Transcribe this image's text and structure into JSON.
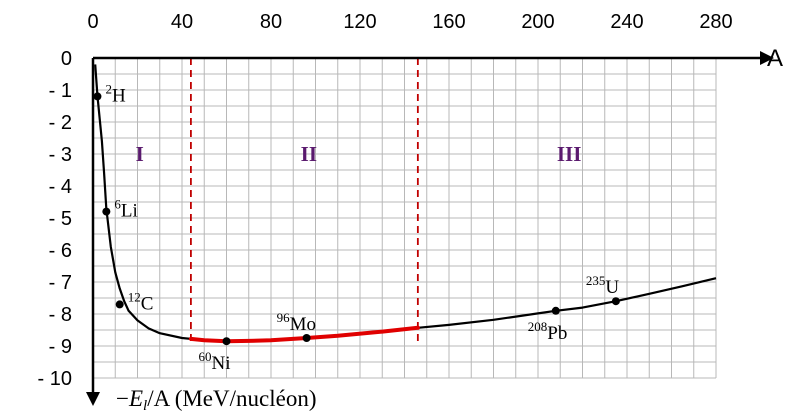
{
  "chart_data": {
    "type": "line",
    "title": "",
    "xlabel": "A",
    "ylabel_parts": [
      "−",
      "E",
      "l",
      "/A (MeV/nucléon)"
    ],
    "xlim": [
      0,
      280
    ],
    "ylim": [
      0,
      -10
    ],
    "x_ticks": [
      0,
      40,
      80,
      120,
      160,
      200,
      240,
      280
    ],
    "y_ticks": [
      0,
      -1,
      -2,
      -3,
      -4,
      -5,
      -6,
      -7,
      -8,
      -9,
      -10
    ],
    "y_tick_labels": [
      "0",
      "- 1",
      "- 2",
      "- 3",
      "- 4",
      "- 5",
      "- 6",
      "- 7",
      "- 8",
      "- 9",
      "- 10"
    ],
    "grid": true,
    "curve": {
      "x": [
        1,
        2,
        3,
        4,
        5,
        6,
        8,
        10,
        12,
        14,
        16,
        20,
        25,
        30,
        40,
        50,
        60,
        70,
        80,
        96,
        110,
        130,
        146,
        160,
        180,
        200,
        208,
        220,
        235,
        250,
        265,
        280
      ],
      "y": [
        -0.2,
        -1.2,
        -1.9,
        -2.6,
        -3.6,
        -4.7,
        -5.9,
        -6.7,
        -7.2,
        -7.6,
        -7.9,
        -8.2,
        -8.45,
        -8.6,
        -8.75,
        -8.82,
        -8.85,
        -8.84,
        -8.82,
        -8.75,
        -8.68,
        -8.55,
        -8.43,
        -8.34,
        -8.18,
        -7.98,
        -7.9,
        -7.8,
        -7.6,
        -7.37,
        -7.13,
        -6.88
      ]
    },
    "highlight": {
      "from_x": 44,
      "to_x": 146,
      "color": "#e00000"
    },
    "boundaries": [
      44,
      146
    ],
    "boundary_color": "#c00000",
    "curve_color": "#000000",
    "regions": [
      {
        "label": "I",
        "x": 21,
        "y": -3
      },
      {
        "label": "II",
        "x": 97,
        "y": -3
      },
      {
        "label": "III",
        "x": 214,
        "y": -3
      }
    ],
    "region_color": "#5a1a6e",
    "points": [
      {
        "mass": "2",
        "symbol": "H",
        "x": 2,
        "y": -1.2,
        "label_side": "right"
      },
      {
        "mass": "6",
        "symbol": "Li",
        "x": 6,
        "y": -4.8,
        "label_side": "right"
      },
      {
        "mass": "12",
        "symbol": "C",
        "x": 12,
        "y": -7.7,
        "label_side": "right"
      },
      {
        "mass": "60",
        "symbol": "Ni",
        "x": 60,
        "y": -8.85,
        "label_side": "below"
      },
      {
        "mass": "96",
        "symbol": "Mo",
        "x": 96,
        "y": -8.75,
        "label_side": "above"
      },
      {
        "mass": "208",
        "symbol": "Pb",
        "x": 208,
        "y": -7.9,
        "label_side": "below"
      },
      {
        "mass": "235",
        "symbol": "U",
        "x": 235,
        "y": -7.6,
        "label_side": "above"
      }
    ]
  }
}
